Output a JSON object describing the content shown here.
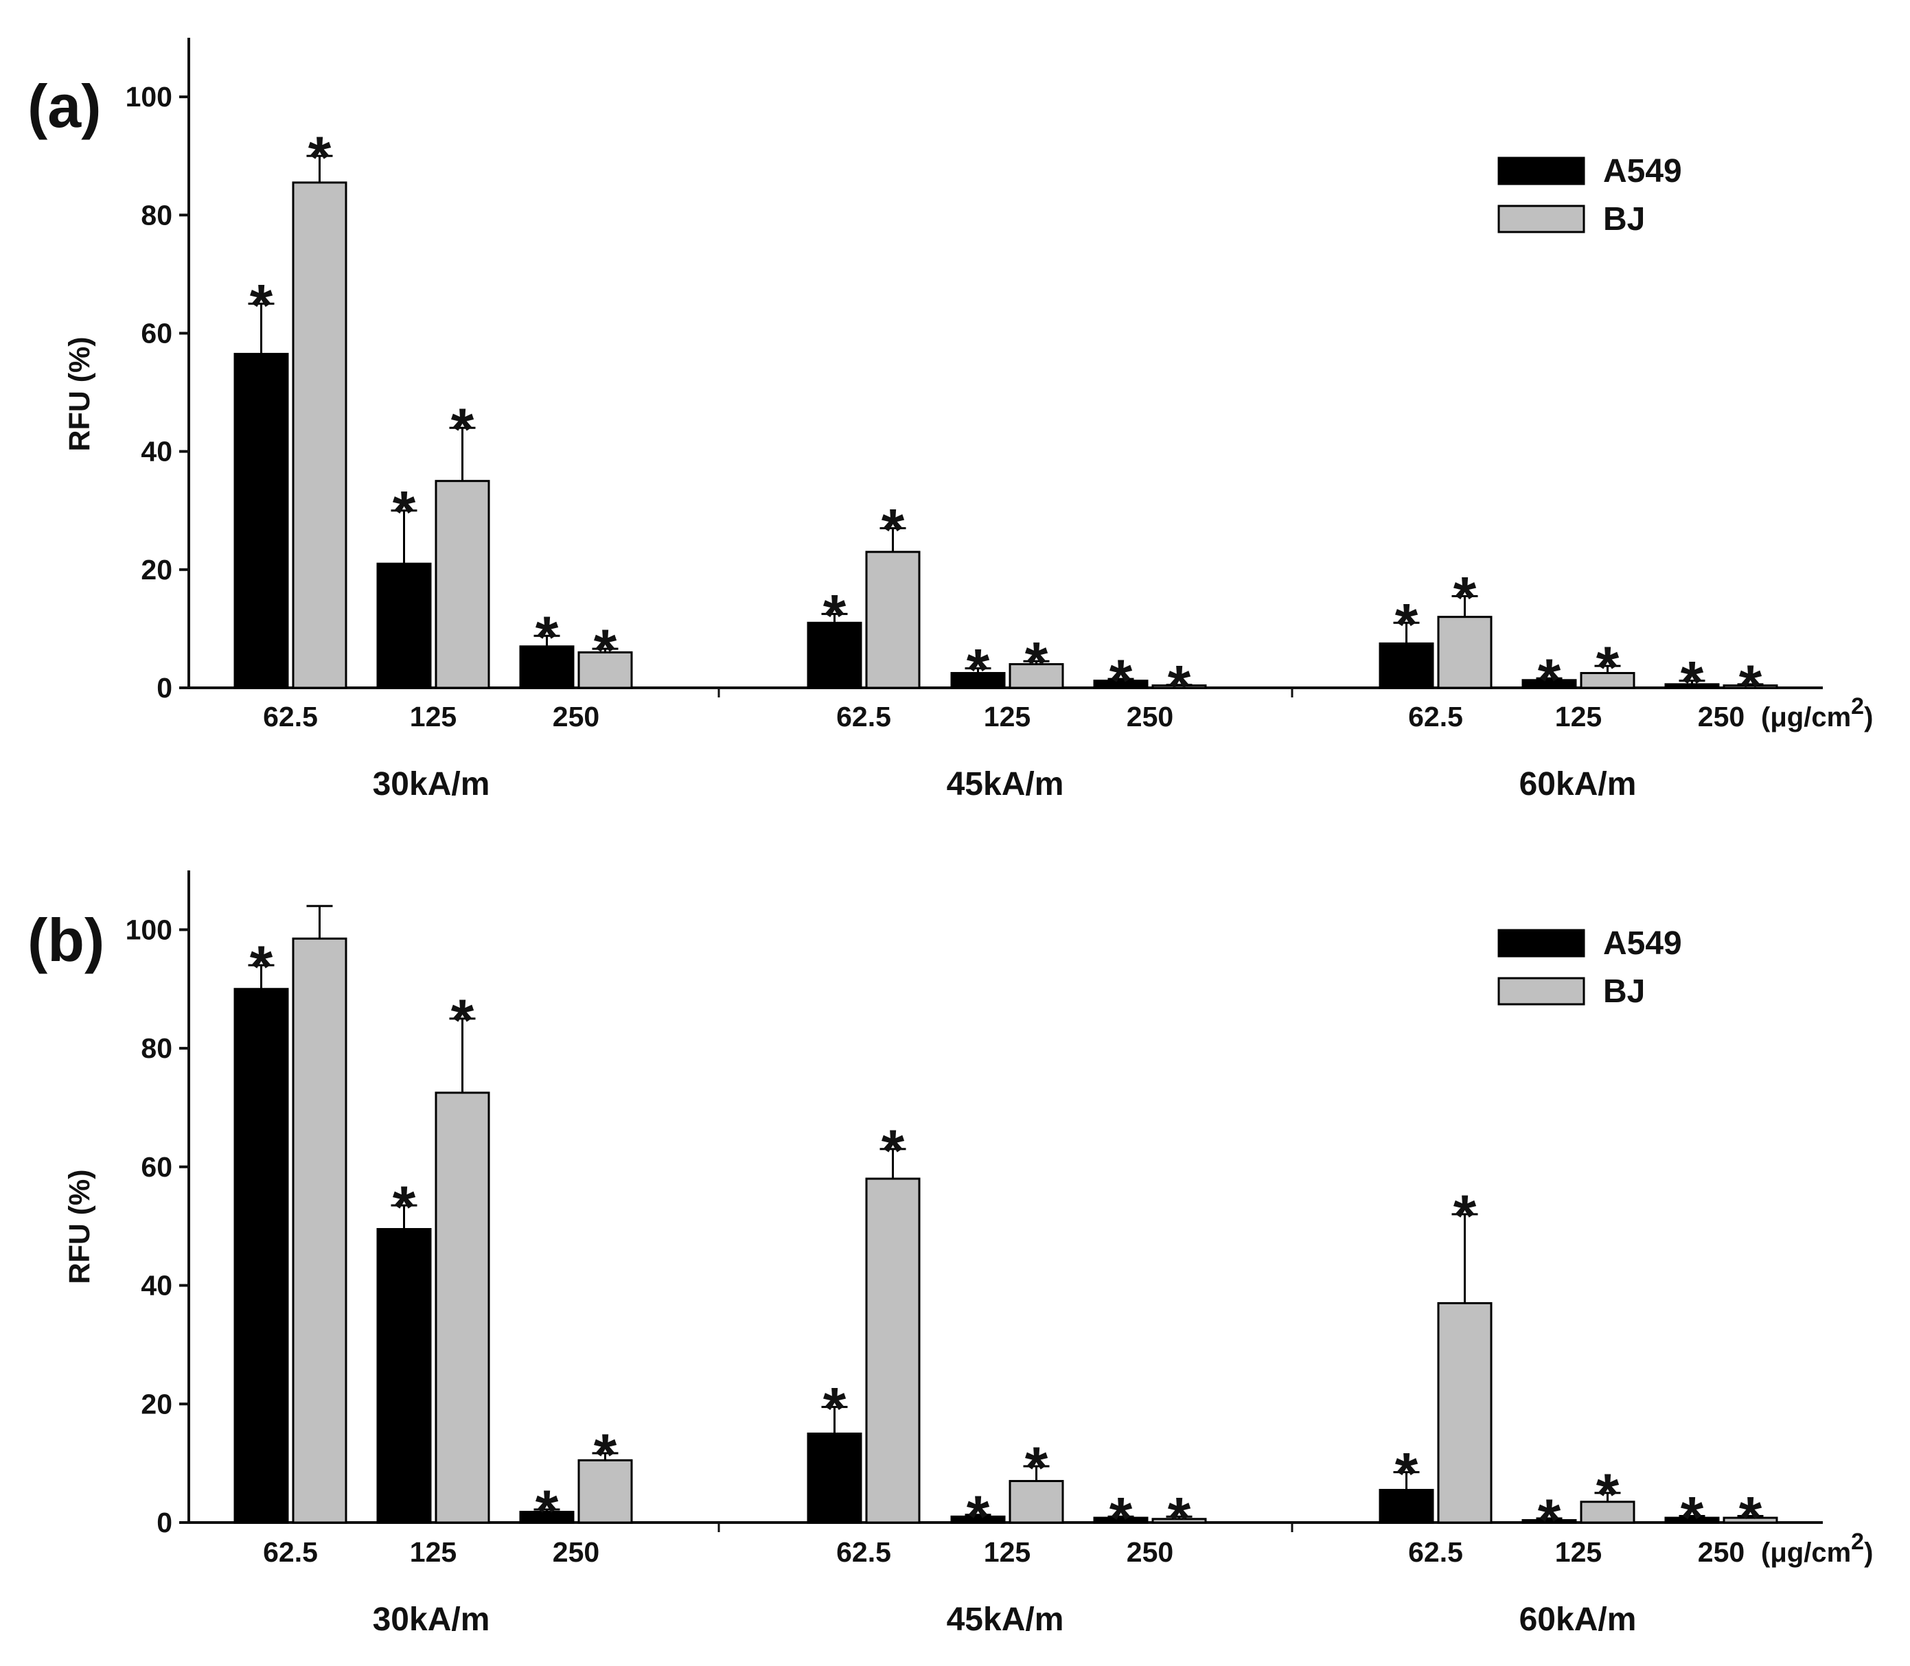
{
  "chart_data": [
    {
      "type": "bar",
      "panel_label": "(a)",
      "ylabel": "RFU (%)",
      "ylim": [
        0,
        110
      ],
      "yticks": [
        "0",
        "20",
        "40",
        "60",
        "80",
        "100"
      ],
      "unit": "(μg/cm",
      "unit_sup": "2",
      "unit_close": ")",
      "legend": {
        "placement": "top-right",
        "entries": [
          "A549",
          "BJ"
        ]
      },
      "groups": [
        {
          "label": "30kA/m",
          "concentrations": [
            "62.5",
            "125",
            "250"
          ],
          "series": [
            {
              "name": "A549",
              "values": [
                56.5,
                21,
                7
              ],
              "errors": [
                8.5,
                9,
                1.8
              ],
              "significant": [
                true,
                true,
                true
              ]
            },
            {
              "name": "BJ",
              "values": [
                85.5,
                35,
                6
              ],
              "errors": [
                4.5,
                9,
                0.6
              ],
              "significant": [
                true,
                true,
                true
              ]
            }
          ]
        },
        {
          "label": "45kA/m",
          "concentrations": [
            "62.5",
            "125",
            "250"
          ],
          "series": [
            {
              "name": "A549",
              "values": [
                11,
                2.5,
                1.2
              ],
              "errors": [
                1.5,
                0.8,
                0.3
              ],
              "significant": [
                true,
                true,
                true
              ]
            },
            {
              "name": "BJ",
              "values": [
                23,
                4,
                0.4
              ],
              "errors": [
                4,
                0.5,
                0.1
              ],
              "significant": [
                true,
                true,
                true
              ]
            }
          ]
        },
        {
          "label": "60kA/m",
          "concentrations": [
            "62.5",
            "125",
            "250"
          ],
          "series": [
            {
              "name": "A549",
              "values": [
                7.5,
                1.3,
                0.6
              ],
              "errors": [
                3.5,
                0.3,
                0.6
              ],
              "significant": [
                true,
                true,
                true
              ]
            },
            {
              "name": "BJ",
              "values": [
                12,
                2.5,
                0.4
              ],
              "errors": [
                3.5,
                1.2,
                0.2
              ],
              "significant": [
                true,
                true,
                true
              ]
            }
          ]
        }
      ]
    },
    {
      "type": "bar",
      "panel_label": "(b)",
      "ylabel": "RFU (%)",
      "ylim": [
        0,
        110
      ],
      "yticks": [
        "0",
        "20",
        "40",
        "60",
        "80",
        "100"
      ],
      "unit": "(μg/cm",
      "unit_sup": "2",
      "unit_close": ")",
      "legend": {
        "placement": "top-right",
        "entries": [
          "A549",
          "BJ"
        ]
      },
      "groups": [
        {
          "label": "30kA/m",
          "concentrations": [
            "62.5",
            "125",
            "250"
          ],
          "series": [
            {
              "name": "A549",
              "values": [
                90,
                49.5,
                1.8
              ],
              "errors": [
                4,
                4,
                0.4
              ],
              "significant": [
                true,
                true,
                true
              ]
            },
            {
              "name": "BJ",
              "values": [
                98.5,
                72.5,
                10.5
              ],
              "errors": [
                5.5,
                12.5,
                1.2
              ],
              "significant": [
                false,
                true,
                true
              ]
            }
          ]
        },
        {
          "label": "45kA/m",
          "concentrations": [
            "62.5",
            "125",
            "250"
          ],
          "series": [
            {
              "name": "A549",
              "values": [
                15,
                1,
                0.8
              ],
              "errors": [
                4.5,
                0.3,
                0.2
              ],
              "significant": [
                true,
                true,
                true
              ]
            },
            {
              "name": "BJ",
              "values": [
                58,
                7,
                0.6
              ],
              "errors": [
                5,
                2.5,
                0.4
              ],
              "significant": [
                true,
                true,
                true
              ]
            }
          ]
        },
        {
          "label": "60kA/m",
          "concentrations": [
            "62.5",
            "125",
            "250"
          ],
          "series": [
            {
              "name": "A549",
              "values": [
                5.5,
                0.4,
                0.8
              ],
              "errors": [
                3,
                0.3,
                0.3
              ],
              "significant": [
                true,
                true,
                true
              ]
            },
            {
              "name": "BJ",
              "values": [
                37,
                3.5,
                0.8
              ],
              "errors": [
                15,
                1.5,
                0.3
              ],
              "significant": [
                true,
                true,
                true
              ]
            }
          ]
        }
      ]
    }
  ],
  "colors": {
    "A549": "#000000",
    "BJ": "#c0c0c0",
    "axis": "#111111"
  },
  "significance_marker": "*"
}
